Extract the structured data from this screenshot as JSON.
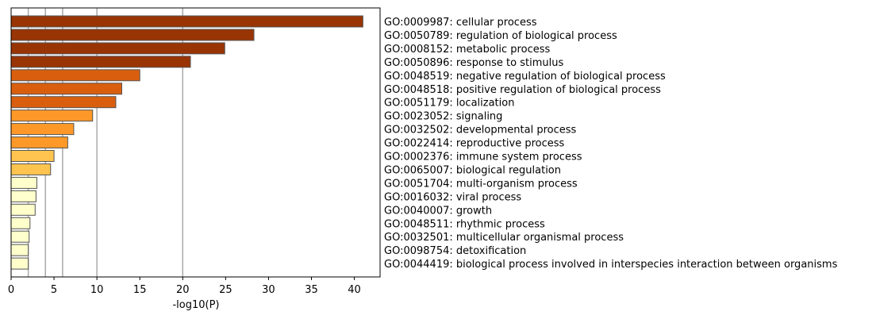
{
  "chart_data": {
    "type": "bar",
    "orientation": "horizontal",
    "xlabel": "-log10(P)",
    "ylabel": "",
    "title": "",
    "xlim": [
      0,
      43
    ],
    "xticks": [
      0,
      5,
      10,
      15,
      20,
      25,
      30,
      35,
      40
    ],
    "vertical_reference_lines": [
      2,
      4,
      6,
      10,
      20
    ],
    "grid": false,
    "categories": [
      "GO:0009987: cellular process",
      "GO:0050789: regulation of biological process",
      "GO:0008152: metabolic process",
      "GO:0050896: response to stimulus",
      "GO:0048519: negative regulation of biological process",
      "GO:0048518: positive regulation of biological process",
      "GO:0051179: localization",
      "GO:0023052: signaling",
      "GO:0032502: developmental process",
      "GO:0022414: reproductive process",
      "GO:0002376: immune system process",
      "GO:0065007: biological regulation",
      "GO:0051704: multi-organism process",
      "GO:0016032: viral process",
      "GO:0040007: growth",
      "GO:0048511: rhythmic process",
      "GO:0032501: multicellular organismal process",
      "GO:0098754: detoxification",
      "GO:0044419: biological process involved in interspecies interaction between organisms"
    ],
    "values": [
      41.0,
      28.3,
      24.9,
      20.9,
      15.0,
      12.9,
      12.2,
      9.5,
      7.3,
      6.6,
      5.0,
      4.6,
      3.0,
      2.9,
      2.8,
      2.2,
      2.1,
      2.0,
      2.0
    ],
    "bar_colors": [
      "#993404",
      "#993404",
      "#993404",
      "#993404",
      "#d95f0e",
      "#d95f0e",
      "#d95f0e",
      "#fe9929",
      "#fe9929",
      "#fe9929",
      "#fec44f",
      "#fec44f",
      "#ffffcc",
      "#ffffcc",
      "#ffffcc",
      "#ffffcc",
      "#ffffcc",
      "#ffffcc",
      "#ffffcc"
    ],
    "bar_edge_color": "#555555",
    "reference_line_color": "#aaaaaa"
  }
}
